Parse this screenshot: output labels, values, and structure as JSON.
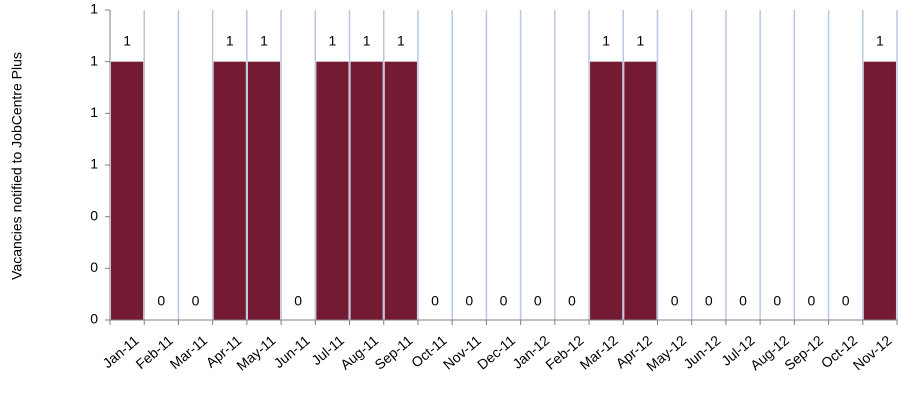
{
  "chart_data": {
    "type": "bar",
    "title": "",
    "xlabel": "",
    "ylabel": "Vacancies notified to JobCentre Plus",
    "categories": [
      "Jan-11",
      "Feb-11",
      "Mar-11",
      "Apr-11",
      "May-11",
      "Jun-11",
      "Jul-11",
      "Aug-11",
      "Sep-11",
      "Oct-11",
      "Nov-11",
      "Dec-11",
      "Jan-12",
      "Feb-12",
      "Mar-12",
      "Apr-12",
      "May-12",
      "Jun-12",
      "Jul-12",
      "Aug-12",
      "Sep-12",
      "Oct-12",
      "Nov-12"
    ],
    "values": [
      1,
      0,
      0,
      1,
      1,
      0,
      1,
      1,
      1,
      0,
      0,
      0,
      0,
      0,
      1,
      1,
      0,
      0,
      0,
      0,
      0,
      0,
      1
    ],
    "data_labels": [
      "1",
      "0",
      "0",
      "1",
      "1",
      "0",
      "1",
      "1",
      "1",
      "0",
      "0",
      "0",
      "0",
      "0",
      "1",
      "1",
      "0",
      "0",
      "0",
      "0",
      "0",
      "0",
      "1"
    ],
    "ylim": [
      0,
      1.2
    ],
    "y_ticks": [
      0,
      0.2,
      0.4,
      0.6,
      0.8,
      1.0,
      1.2
    ],
    "y_tick_labels": [
      "0",
      "0",
      "0",
      "1",
      "1",
      "1",
      "1"
    ],
    "grid": "vertical",
    "colors": {
      "bar": "#741b33",
      "grid": "#b8c8e0",
      "axis": "#808080"
    }
  }
}
